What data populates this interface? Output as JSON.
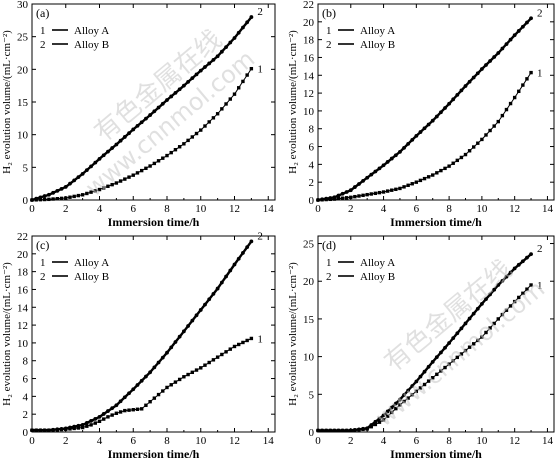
{
  "watermark": {
    "line1": "有色金属在线",
    "line2": "www.cnnmol.com"
  },
  "chart_data": [
    {
      "type": "scatter",
      "panel_label": "(a)",
      "xlabel": "Immersion time/h",
      "ylabel": "H₂ evolution volume/(mL·cm⁻²)",
      "xlim": [
        0,
        14.4
      ],
      "ylim": [
        0,
        30
      ],
      "xticks": [
        0,
        2,
        4,
        6,
        8,
        10,
        12,
        14
      ],
      "yticks": [
        0,
        5,
        10,
        15,
        20,
        25,
        30
      ],
      "legend_position": "top-left",
      "legend": [
        {
          "number": "1",
          "name": "Alloy A"
        },
        {
          "number": "2",
          "name": "Alloy B"
        }
      ],
      "series": [
        {
          "name": "Alloy A",
          "curve_label": "1",
          "marker": "square",
          "x": [
            0,
            1,
            2,
            3,
            4,
            5,
            6,
            7,
            8,
            9,
            10,
            11,
            12,
            13
          ],
          "y": [
            0,
            0.1,
            0.3,
            0.8,
            1.6,
            2.6,
            3.8,
            5.2,
            6.8,
            8.6,
            10.7,
            13.2,
            16.2,
            20.1
          ]
        },
        {
          "name": "Alloy B",
          "curve_label": "2",
          "marker": "circle",
          "x": [
            0,
            1,
            2,
            3,
            4,
            5,
            6,
            7,
            8,
            9,
            10,
            11,
            12,
            13
          ],
          "y": [
            0,
            0.8,
            2.0,
            4.0,
            6.3,
            8.5,
            10.8,
            13.0,
            15.3,
            17.5,
            19.8,
            22.0,
            24.8,
            28.0
          ]
        }
      ]
    },
    {
      "type": "scatter",
      "panel_label": "(b)",
      "xlabel": "Immersion time/h",
      "ylabel": "H₂ evolution volume/(mL·cm⁻²)",
      "xlim": [
        0,
        14.4
      ],
      "ylim": [
        0,
        22
      ],
      "xticks": [
        0,
        2,
        4,
        6,
        8,
        10,
        12,
        14
      ],
      "yticks": [
        0,
        2,
        4,
        6,
        8,
        10,
        12,
        14,
        16,
        18,
        20,
        22
      ],
      "legend_position": "top-left",
      "legend": [
        {
          "number": "1",
          "name": "Alloy A"
        },
        {
          "number": "2",
          "name": "Alloy B"
        }
      ],
      "series": [
        {
          "name": "Alloy A",
          "curve_label": "1",
          "marker": "square",
          "x": [
            0,
            1,
            2,
            3,
            4,
            5,
            6,
            7,
            8,
            9,
            10,
            11,
            12,
            13
          ],
          "y": [
            0,
            0.1,
            0.3,
            0.6,
            0.9,
            1.3,
            2.0,
            2.8,
            3.8,
            5.1,
            6.8,
            8.8,
            11.5,
            14.3
          ]
        },
        {
          "name": "Alloy B",
          "curve_label": "2",
          "marker": "circle",
          "x": [
            0,
            1,
            2,
            3,
            4,
            5,
            6,
            7,
            8,
            9,
            10,
            11,
            12,
            13
          ],
          "y": [
            0,
            0.3,
            1.1,
            2.5,
            3.9,
            5.4,
            7.2,
            8.9,
            10.8,
            12.8,
            14.7,
            16.5,
            18.5,
            20.4
          ]
        }
      ]
    },
    {
      "type": "scatter",
      "panel_label": "(c)",
      "xlabel": "Immersion time/h",
      "ylabel": "H₂ evolution volume/(mL·cm⁻²)",
      "xlim": [
        0,
        14.4
      ],
      "ylim": [
        0,
        22
      ],
      "xticks": [
        0,
        2,
        4,
        6,
        8,
        10,
        12,
        14
      ],
      "yticks": [
        0,
        2,
        4,
        6,
        8,
        10,
        12,
        14,
        16,
        18,
        20,
        22
      ],
      "legend_position": "top-left",
      "legend": [
        {
          "number": "1",
          "name": "Alloy A"
        },
        {
          "number": "2",
          "name": "Alloy B"
        }
      ],
      "series": [
        {
          "name": "Alloy A",
          "curve_label": "1",
          "marker": "square",
          "x": [
            0,
            1,
            2,
            3,
            3.5,
            4,
            4.5,
            5,
            5.5,
            6,
            6.5,
            7,
            8,
            9,
            10,
            11,
            12,
            13
          ],
          "y": [
            0.2,
            0.2,
            0.3,
            0.5,
            0.8,
            1.2,
            1.7,
            2.1,
            2.4,
            2.5,
            2.6,
            3.4,
            5.0,
            6.2,
            7.2,
            8.4,
            9.6,
            10.5
          ]
        },
        {
          "name": "Alloy B",
          "curve_label": "2",
          "marker": "circle",
          "x": [
            0,
            1,
            2,
            3,
            4,
            5,
            6,
            7,
            8,
            9,
            10,
            11,
            12,
            13
          ],
          "y": [
            0.2,
            0.2,
            0.4,
            0.8,
            1.7,
            3.0,
            4.8,
            6.7,
            8.9,
            11.3,
            13.7,
            16.1,
            18.8,
            21.4
          ]
        }
      ]
    },
    {
      "type": "scatter",
      "panel_label": "(d)",
      "xlabel": "Immersion time/h",
      "ylabel": "H₂ evolution volume/(mL·cm⁻²)",
      "xlim": [
        0,
        14.4
      ],
      "ylim": [
        0,
        26
      ],
      "xticks": [
        0,
        2,
        4,
        6,
        8,
        10,
        12,
        14
      ],
      "yticks": [
        0,
        5,
        10,
        15,
        20,
        25
      ],
      "legend_position": "top-left",
      "legend": [
        {
          "number": "1",
          "name": "Alloy A"
        },
        {
          "number": "2",
          "name": "Alloy B"
        }
      ],
      "series": [
        {
          "name": "Alloy A",
          "curve_label": "1",
          "marker": "square",
          "x": [
            0,
            1,
            2,
            3,
            4,
            5,
            6,
            7,
            8,
            9,
            10,
            11,
            12,
            13
          ],
          "y": [
            0.2,
            0.2,
            0.2,
            0.4,
            1.6,
            3.6,
            5.4,
            7.2,
            9.0,
            10.8,
            12.6,
            15.0,
            17.3,
            19.5
          ]
        },
        {
          "name": "Alloy B",
          "curve_label": "2",
          "marker": "circle",
          "x": [
            0,
            1,
            2,
            3,
            4,
            5,
            6,
            7,
            8,
            9,
            10,
            11,
            12,
            13
          ],
          "y": [
            0.2,
            0.2,
            0.2,
            0.5,
            2.2,
            4.3,
            6.7,
            9.3,
            11.8,
            14.4,
            17.0,
            19.5,
            21.7,
            23.6
          ]
        }
      ]
    }
  ]
}
